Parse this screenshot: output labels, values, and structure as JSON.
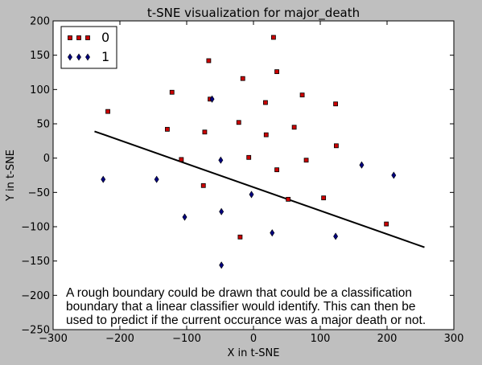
{
  "chart_data": {
    "type": "scatter",
    "title": "t-SNE visualization for major_death",
    "xlabel": "X in t-SNE",
    "ylabel": "Y in t-SNE",
    "xlim": [
      -300,
      300
    ],
    "ylim": [
      -250,
      200
    ],
    "xticks": [
      -300,
      -200,
      -100,
      0,
      100,
      200,
      300
    ],
    "yticks": [
      -250,
      -200,
      -150,
      -100,
      -50,
      0,
      50,
      100,
      150,
      200
    ],
    "xtick_labels": [
      "−300",
      "−200",
      "−100",
      "0",
      "100",
      "200",
      "300"
    ],
    "ytick_labels": [
      "−250",
      "−200",
      "−150",
      "−100",
      "−50",
      "0",
      "50",
      "100",
      "150",
      "200"
    ],
    "grid": false,
    "legend_position": "top-left",
    "series": [
      {
        "name": "0",
        "marker": "square",
        "color": "#cc0000",
        "points": [
          [
            30,
            176
          ],
          [
            -67,
            142
          ],
          [
            35,
            126
          ],
          [
            -16,
            116
          ],
          [
            -122,
            96
          ],
          [
            -65,
            86
          ],
          [
            73,
            92
          ],
          [
            18,
            81
          ],
          [
            123,
            79
          ],
          [
            -218,
            68
          ],
          [
            -22,
            52
          ],
          [
            61,
            45
          ],
          [
            -129,
            42
          ],
          [
            -73,
            38
          ],
          [
            19,
            34
          ],
          [
            124,
            18
          ],
          [
            -108,
            -2
          ],
          [
            -7,
            1
          ],
          [
            79,
            -3
          ],
          [
            35,
            -17
          ],
          [
            -75,
            -40
          ],
          [
            52,
            -60
          ],
          [
            105,
            -58
          ],
          [
            199,
            -96
          ],
          [
            -20,
            -115
          ]
        ]
      },
      {
        "name": "1",
        "marker": "diamond",
        "color": "#00007f",
        "points": [
          [
            -62,
            86
          ],
          [
            -49,
            -3
          ],
          [
            162,
            -10
          ],
          [
            210,
            -25
          ],
          [
            -225,
            -31
          ],
          [
            -145,
            -31
          ],
          [
            -3,
            -53
          ],
          [
            -103,
            -86
          ],
          [
            -48,
            -78
          ],
          [
            28,
            -109
          ],
          [
            123,
            -114
          ],
          [
            -48,
            -156
          ]
        ]
      }
    ],
    "boundary_line": {
      "x": [
        -238,
        256
      ],
      "y": [
        39,
        -130
      ],
      "color": "#000000"
    },
    "annotation": [
      "A rough boundary could be drawn that could be a classification",
      "boundary that a linear classifier would identify. This can then be",
      "used to predict if the current occurance was a major death or not."
    ]
  }
}
